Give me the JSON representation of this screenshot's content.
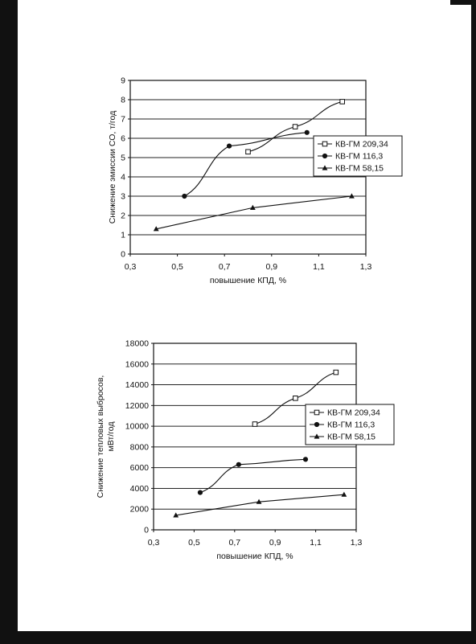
{
  "chart_data": [
    {
      "type": "line",
      "title": "",
      "xlabel": "повышение КПД, %",
      "ylabel": "Снижение эмиссии СО, т/год",
      "xlim": [
        0.3,
        1.3
      ],
      "ylim": [
        0,
        9
      ],
      "x_ticks": [
        "0,3",
        "0,5",
        "0,7",
        "0,9",
        "1,1",
        "1,3"
      ],
      "y_ticks": [
        "0",
        "1",
        "2",
        "3",
        "4",
        "5",
        "6",
        "7",
        "8",
        "9"
      ],
      "grid": "horizontal",
      "legend_position": "right",
      "series": [
        {
          "name": "КВ-ГМ 209,34",
          "marker": "open-square",
          "x": [
            0.8,
            1.0,
            1.2
          ],
          "y": [
            5.3,
            6.6,
            7.9
          ]
        },
        {
          "name": "КВ-ГМ 116,3",
          "marker": "filled-circle",
          "x": [
            0.53,
            0.72,
            1.05
          ],
          "y": [
            3.0,
            5.6,
            6.3
          ]
        },
        {
          "name": "КВ-ГМ 58,15",
          "marker": "filled-triangle",
          "x": [
            0.41,
            0.82,
            1.24
          ],
          "y": [
            1.3,
            2.4,
            3.0
          ]
        }
      ]
    },
    {
      "type": "line",
      "title": "",
      "xlabel": "повышение КПД, %",
      "ylabel_lines": [
        "Снижение тепловых выбросов,",
        "мВт/год"
      ],
      "xlim": [
        0.3,
        1.3
      ],
      "ylim": [
        0,
        18000
      ],
      "x_ticks": [
        "0,3",
        "0,5",
        "0,7",
        "0,9",
        "1,1",
        "1,3"
      ],
      "y_ticks": [
        "0",
        "2000",
        "4000",
        "6000",
        "8000",
        "10000",
        "12000",
        "14000",
        "16000",
        "18000"
      ],
      "grid": "horizontal",
      "legend_position": "right",
      "series": [
        {
          "name": "КВ-ГМ 209,34",
          "marker": "open-square",
          "x": [
            0.8,
            1.0,
            1.2
          ],
          "y": [
            10200,
            12700,
            15200
          ]
        },
        {
          "name": "КВ-ГМ 116,3",
          "marker": "filled-circle",
          "x": [
            0.53,
            0.72,
            1.05
          ],
          "y": [
            3600,
            6300,
            6800
          ]
        },
        {
          "name": "КВ-ГМ 58,15",
          "marker": "filled-triangle",
          "x": [
            0.41,
            0.82,
            1.24
          ],
          "y": [
            1400,
            2700,
            3400
          ]
        }
      ]
    }
  ]
}
